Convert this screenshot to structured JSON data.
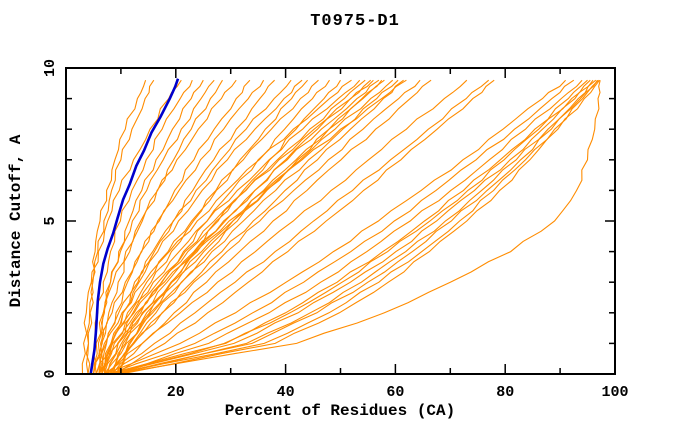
{
  "title": "T0975-D1",
  "colors": {
    "model_curve": "#ff8c00",
    "highlight_curve": "#0000cc",
    "axis": "#000000",
    "background": "#ffffff"
  },
  "chart_data": {
    "type": "line",
    "title": "T0975-D1",
    "xlabel": "Percent of Residues (CA)",
    "ylabel": "Distance Cutoff, A",
    "xlim": [
      0,
      100
    ],
    "ylim": [
      0,
      10
    ],
    "xticks_major": [
      0,
      20,
      40,
      60,
      80,
      100
    ],
    "xticks_minor": [
      10,
      30,
      50,
      70,
      90
    ],
    "yticks_major": [
      0,
      5,
      10
    ],
    "yticks_minor": [
      1,
      2,
      3,
      4,
      6,
      7,
      8,
      9
    ],
    "grid": false,
    "legend": false,
    "frame": "box-with-mirrored-inward-ticks",
    "cutoffs": [
      0,
      1,
      2,
      3,
      4,
      5,
      6,
      7,
      8,
      9,
      9.6
    ],
    "highlight_series": {
      "color": "#0000cc",
      "points": [
        [
          4.5,
          0
        ],
        [
          5.2,
          0.8
        ],
        [
          5.5,
          1.5
        ],
        [
          5.8,
          2.4
        ],
        [
          6.2,
          3.0
        ],
        [
          6.8,
          3.6
        ],
        [
          7.6,
          4.1
        ],
        [
          8.6,
          4.6
        ],
        [
          9.4,
          5.1
        ],
        [
          10.4,
          5.7
        ],
        [
          11.6,
          6.2
        ],
        [
          12.8,
          6.8
        ],
        [
          14.2,
          7.3
        ],
        [
          15.6,
          7.9
        ],
        [
          17.2,
          8.4
        ],
        [
          18.9,
          9.0
        ],
        [
          19.9,
          9.4
        ],
        [
          20.4,
          9.65
        ]
      ]
    },
    "series": [
      {
        "percents": [
          4,
          4.1,
          4.4,
          4.9,
          5.8,
          6.9,
          8.3,
          10,
          12,
          14.4,
          16
        ]
      },
      {
        "percents": [
          5,
          5.2,
          5.8,
          6.8,
          8.1,
          9.9,
          12,
          14.6,
          17.5,
          20.8,
          23
        ]
      },
      {
        "percents": [
          5.5,
          5.9,
          6.8,
          8.1,
          9.9,
          12.1,
          14.7,
          17.7,
          21,
          24.6,
          27
        ]
      },
      {
        "percents": [
          6,
          6.6,
          7.8,
          9.5,
          11.6,
          13.9,
          16.6,
          19.6,
          22.8,
          26.3,
          28.5
        ]
      },
      {
        "percents": [
          5,
          5.5,
          6.8,
          8.6,
          10.9,
          13.6,
          16.7,
          20.2,
          24.1,
          28.3,
          31
        ]
      },
      {
        "percents": [
          6.5,
          7.4,
          9.1,
          11.2,
          13.8,
          16.7,
          19.8,
          23.3,
          27,
          31,
          33.5
        ]
      },
      {
        "percents": [
          5.5,
          6.5,
          8.4,
          10.8,
          13.7,
          17,
          20.6,
          24.5,
          28.7,
          33.2,
          36
        ]
      },
      {
        "percents": [
          7,
          8.3,
          10.4,
          13.1,
          16.1,
          19.5,
          23.1,
          26.9,
          31,
          35.3,
          38
        ]
      },
      {
        "percents": [
          6,
          7.3,
          9.6,
          12.5,
          15.8,
          19.6,
          23.7,
          28.2,
          32.8,
          37.9,
          41
        ]
      },
      {
        "percents": [
          7.5,
          9.4,
          12.2,
          15.5,
          19.2,
          23.2,
          27.3,
          31.7,
          36.3,
          41.1,
          44
        ]
      },
      {
        "percents": [
          6.5,
          8.4,
          11.2,
          14.7,
          18.6,
          22.9,
          27.4,
          32.3,
          37.4,
          42.7,
          46
        ]
      },
      {
        "percents": [
          8,
          10.4,
          13.6,
          17.4,
          21.4,
          25.7,
          30.2,
          35,
          39.8,
          44.9,
          48
        ]
      },
      {
        "percents": [
          5,
          7,
          10.2,
          14.2,
          18.8,
          23.9,
          29.3,
          35.2,
          41.4,
          48,
          52
        ]
      },
      {
        "percents": [
          6,
          8.2,
          11.7,
          15.9,
          20.6,
          25.7,
          31.2,
          37,
          43.1,
          49.6,
          53.5
        ]
      },
      {
        "percents": [
          7,
          9.5,
          13.2,
          17.5,
          22.2,
          27.4,
          32.8,
          38.5,
          44.4,
          50.7,
          54.5
        ]
      },
      {
        "percents": [
          8,
          10.8,
          14.7,
          19.1,
          23.9,
          29,
          34.4,
          40,
          45.8,
          51.8,
          55.5
        ]
      },
      {
        "percents": [
          6.5,
          8.8,
          12.4,
          16.8,
          21.7,
          27,
          32.7,
          38.8,
          45.2,
          51.9,
          56
        ]
      },
      {
        "percents": [
          7.5,
          10.1,
          13.9,
          18.4,
          23.3,
          28.7,
          34.4,
          40.3,
          46.5,
          53,
          57
        ]
      },
      {
        "percents": [
          9,
          12.2,
          16.4,
          21,
          26,
          31.2,
          36.6,
          42.2,
          47.9,
          53.9,
          57.5
        ]
      },
      {
        "percents": [
          8.5,
          11.4,
          15.4,
          20.1,
          25.1,
          30.4,
          36,
          41.9,
          47.9,
          54.1,
          58
        ]
      },
      {
        "percents": [
          6,
          9.5,
          14.1,
          19.3,
          24.7,
          30.4,
          36.4,
          42.7,
          49,
          55.5,
          59.5
        ]
      },
      {
        "percents": [
          7,
          11,
          15.8,
          21.1,
          26.6,
          32.3,
          38.2,
          44.2,
          50.4,
          56.6,
          60.5
        ]
      },
      {
        "percents": [
          8,
          12.4,
          17.5,
          22.9,
          28.4,
          34.1,
          39.9,
          45.8,
          51.8,
          57.8,
          61.5
        ]
      },
      {
        "percents": [
          7.5,
          12.2,
          17.6,
          23.3,
          29.3,
          35.3,
          41.5,
          47.8,
          54.1,
          60.6,
          64.5
        ]
      },
      {
        "percents": [
          8.5,
          13.9,
          19.7,
          25.6,
          31.6,
          37.7,
          43.9,
          50.1,
          56.4,
          62.7,
          66.5
        ]
      },
      {
        "percents": [
          7,
          13.9,
          20.8,
          27.6,
          34.5,
          41.4,
          48.3,
          55.1,
          62,
          68.9,
          73
        ]
      },
      {
        "percents": [
          8,
          16.1,
          23.5,
          30.8,
          38.1,
          45.1,
          52.2,
          59.1,
          66,
          72.9,
          77
        ]
      },
      {
        "percents": [
          9,
          18,
          25.8,
          33.2,
          40.4,
          47.4,
          54.2,
          61,
          67.6,
          74.1,
          78
        ]
      },
      {
        "percents": [
          7,
          20.8,
          30.9,
          40.1,
          48.7,
          56.9,
          64.7,
          72.3,
          79.6,
          86.8,
          91
        ]
      },
      {
        "percents": [
          8,
          23.5,
          34,
          43.3,
          51.9,
          59.8,
          67.4,
          74.7,
          81.7,
          88.5,
          92.5
        ]
      },
      {
        "percents": [
          8.5,
          26,
          37,
          46.4,
          54.8,
          62.7,
          70.1,
          77.1,
          83.7,
          90.2,
          94
        ]
      },
      {
        "percents": [
          9,
          28.8,
          40,
          49.4,
          57.7,
          65.3,
          72.4,
          79.1,
          85.4,
          91.5,
          95
        ]
      },
      {
        "percents": [
          7.5,
          29.1,
          40.8,
          50.3,
          58.6,
          66.3,
          73.2,
          79.8,
          86.1,
          92.1,
          95.5
        ]
      },
      {
        "percents": [
          8,
          30.6,
          42.3,
          51.8,
          60.1,
          67.5,
          74.4,
          80.9,
          86.8,
          92.7,
          96
        ]
      },
      {
        "percents": [
          9.5,
          32.9,
          44.5,
          53.8,
          61.9,
          69.1,
          75.7,
          82,
          87.8,
          93.3,
          96.5
        ]
      },
      {
        "percents": [
          8.5,
          33.9,
          45.7,
          55,
          63.1,
          70.2,
          76.7,
          82.8,
          88.4,
          93.7,
          96.8
        ]
      },
      {
        "percents": [
          9,
          36.1,
          47.9,
          57,
          64.8,
          71.7,
          77.9,
          83.7,
          89,
          94.1,
          97
        ]
      },
      {
        "percents": [
          10,
          38.1,
          49.8,
          58.7,
          66.2,
          73,
          79,
          84.5,
          89.6,
          94.4,
          97.2
        ]
      },
      {
        "percents": [
          6,
          6.3,
          7,
          8.1,
          9.6,
          11.5,
          13.8,
          16.4,
          19.4,
          22.8,
          25
        ]
      },
      {
        "percents": [
          7,
          8.2,
          10.4,
          13.3,
          16.7,
          20.5,
          24.8,
          29.4,
          34.4,
          39.7,
          43
        ]
      },
      {
        "percents": [
          9,
          11.7,
          15.2,
          19.2,
          23.4,
          27.7,
          32.3,
          37.1,
          41.9,
          47,
          50
        ]
      },
      {
        "percents": [
          5.5,
          8.5,
          12.8,
          17.9,
          23.6,
          29.7,
          36.2,
          43,
          50,
          57.5,
          62
        ]
      },
      {
        "percents": [
          4,
          4.1,
          4.3,
          4.7,
          5.3,
          6.2,
          7.4,
          8.9,
          10.8,
          13,
          14.5
        ]
      },
      {
        "percents": [
          3,
          3.2,
          3.7,
          4.6,
          5.9,
          7.6,
          9.7,
          12.3,
          15.3,
          18.7,
          21
        ]
      },
      {
        "percents": [
          9,
          42,
          58,
          70,
          81,
          89,
          93,
          95,
          96.3,
          96.9,
          97.3
        ]
      }
    ]
  }
}
